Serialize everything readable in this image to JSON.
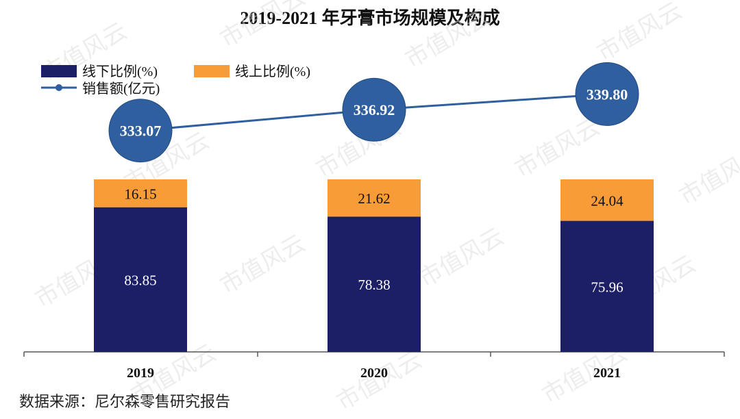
{
  "title": "2019-2021 年牙膏市场规模及构成",
  "source": "数据来源：尼尔森零售研究报告",
  "watermark": "市值风云",
  "colors": {
    "offline": "#1c1f66",
    "online": "#f89c38",
    "line": "#2f5f9f",
    "circle": "#2f5f9f"
  },
  "chart_data": {
    "type": "bar",
    "stacked": true,
    "categories": [
      "2019",
      "2020",
      "2021"
    ],
    "series": [
      {
        "name": "线下比例(%)",
        "values": [
          83.85,
          78.38,
          75.96
        ]
      },
      {
        "name": "线上比例(%)",
        "values": [
          16.15,
          21.62,
          24.04
        ]
      }
    ],
    "line_series": {
      "name": "销售额(亿元)",
      "values": [
        333.07,
        336.92,
        339.8
      ],
      "labels": [
        "333.07",
        "336.92",
        "339.80"
      ]
    },
    "ylim": [
      0,
      100
    ],
    "legend": [
      "线下比例(%)",
      "线上比例(%)",
      "销售额(亿元)"
    ],
    "legend_position": "top-left",
    "grid": false
  }
}
